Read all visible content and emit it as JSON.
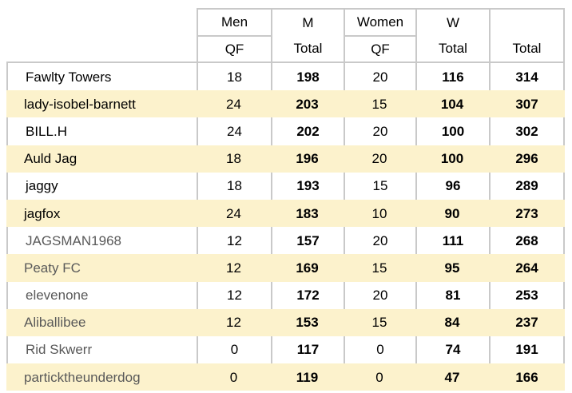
{
  "colors": {
    "band": "#FCF2CC",
    "gridline": "#C9C9C9",
    "text": "#000000",
    "muted_name": "#595959"
  },
  "table": {
    "header": {
      "columns": [
        {
          "line1": "Men",
          "line2": "QF"
        },
        {
          "line1": "M",
          "line2": "Total"
        },
        {
          "line1": "Women",
          "line2": "QF"
        },
        {
          "line1": "W",
          "line2": "Total"
        },
        {
          "line1": "",
          "line2": "Total"
        }
      ]
    },
    "rows": [
      {
        "name": "Fawlty Towers",
        "men_qf": "18",
        "m_total": "198",
        "women_qf": "20",
        "w_total": "116",
        "total": "314",
        "muted": false
      },
      {
        "name": "lady-isobel-barnett",
        "men_qf": "24",
        "m_total": "203",
        "women_qf": "15",
        "w_total": "104",
        "total": "307",
        "muted": false
      },
      {
        "name": "BILL.H",
        "men_qf": "24",
        "m_total": "202",
        "women_qf": "20",
        "w_total": "100",
        "total": "302",
        "muted": false
      },
      {
        "name": "Auld Jag",
        "men_qf": "18",
        "m_total": "196",
        "women_qf": "20",
        "w_total": "100",
        "total": "296",
        "muted": false
      },
      {
        "name": "jaggy",
        "men_qf": "18",
        "m_total": "193",
        "women_qf": "15",
        "w_total": "96",
        "total": "289",
        "muted": false
      },
      {
        "name": "jagfox",
        "men_qf": "24",
        "m_total": "183",
        "women_qf": "10",
        "w_total": "90",
        "total": "273",
        "muted": false
      },
      {
        "name": "JAGSMAN1968",
        "men_qf": "12",
        "m_total": "157",
        "women_qf": "20",
        "w_total": "111",
        "total": "268",
        "muted": true
      },
      {
        "name": "Peaty FC",
        "men_qf": "12",
        "m_total": "169",
        "women_qf": "15",
        "w_total": "95",
        "total": "264",
        "muted": true
      },
      {
        "name": "elevenone",
        "men_qf": "12",
        "m_total": "172",
        "women_qf": "20",
        "w_total": "81",
        "total": "253",
        "muted": true
      },
      {
        "name": "Aliballibee",
        "men_qf": "12",
        "m_total": "153",
        "women_qf": "15",
        "w_total": "84",
        "total": "237",
        "muted": true
      },
      {
        "name": "Rid Skwerr",
        "men_qf": "0",
        "m_total": "117",
        "women_qf": "0",
        "w_total": "74",
        "total": "191",
        "muted": true
      },
      {
        "name": "particktheunderdog",
        "men_qf": "0",
        "m_total": "119",
        "women_qf": "0",
        "w_total": "47",
        "total": "166",
        "muted": true
      }
    ]
  }
}
